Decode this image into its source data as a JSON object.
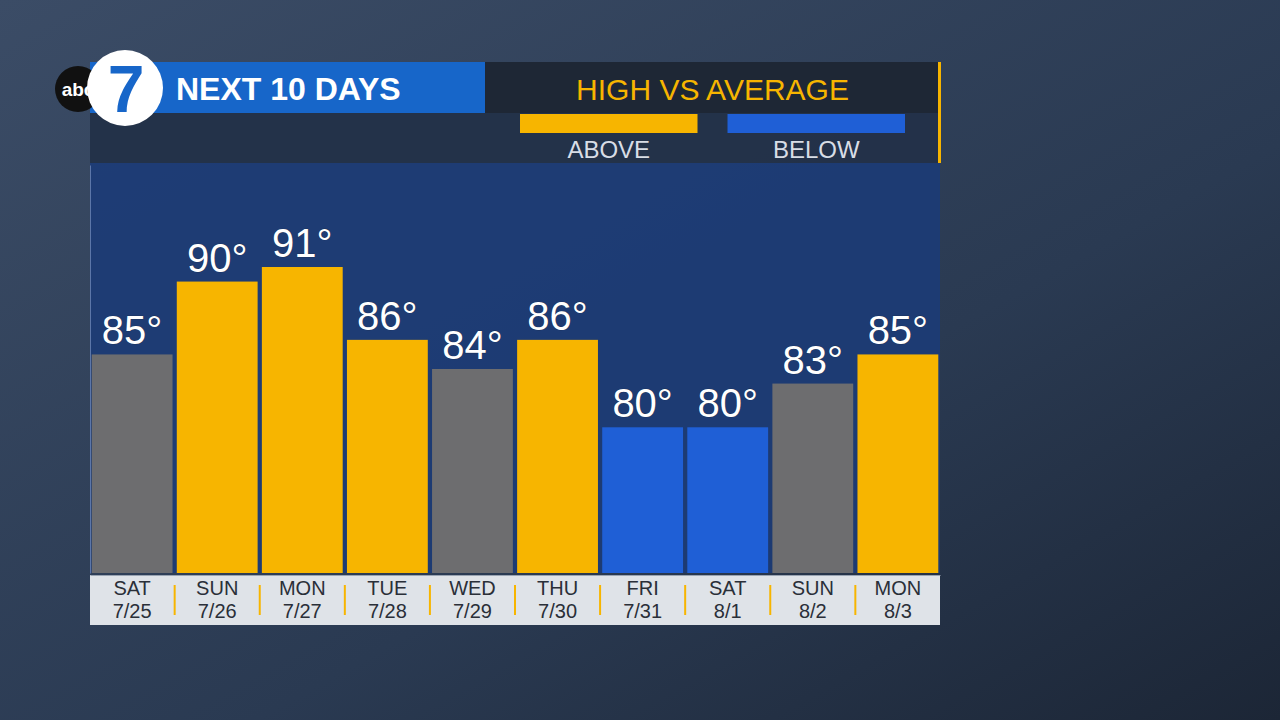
{
  "logo": {
    "network": "abc",
    "channel": "7"
  },
  "chart_data": {
    "type": "bar",
    "title": "NEXT 10 DAYS",
    "subtitle": "HIGH VS AVERAGE",
    "categories": [
      "SAT 7/25",
      "SUN 7/26",
      "MON 7/27",
      "TUE 7/28",
      "WED 7/29",
      "THU 7/30",
      "FRI 7/31",
      "SAT 8/1",
      "SUN 8/2",
      "MON 8/3"
    ],
    "series": [
      {
        "name": "ABOVE",
        "color": "#f7b500",
        "values": [
          null,
          90,
          91,
          86,
          null,
          86,
          null,
          null,
          null,
          85
        ],
        "value_labels": [
          null,
          "90°",
          "91°",
          "86°",
          null,
          "86°",
          null,
          null,
          null,
          "85°"
        ]
      },
      {
        "name": "BELOW",
        "color": "#1f5fd6",
        "values": [
          null,
          null,
          null,
          null,
          null,
          null,
          80,
          80,
          null,
          null
        ],
        "value_labels": [
          null,
          null,
          null,
          null,
          null,
          null,
          "80°",
          "80°",
          null,
          null
        ]
      },
      {
        "color": "#6d6d6f",
        "values": [
          85,
          null,
          null,
          null,
          84,
          null,
          null,
          null,
          83,
          null
        ],
        "value_labels": [
          "85°",
          null,
          null,
          null,
          "84°",
          null,
          null,
          null,
          "83°",
          null
        ]
      }
    ],
    "ylim": [
      70,
      98
    ],
    "yticks": [],
    "tick_labels": "x",
    "grid": false,
    "data_labels": true,
    "legend": "top-right"
  }
}
